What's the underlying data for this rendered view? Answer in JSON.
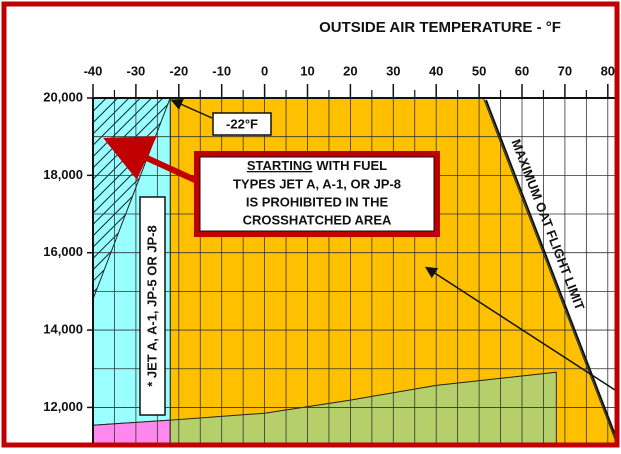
{
  "chart_data": {
    "type": "region",
    "title": "OUTSIDE AIR TEMPERATURE  -  °F",
    "xlim": [
      -40,
      82
    ],
    "ylim": [
      11080,
      20000
    ],
    "xticks": [
      -40,
      -30,
      -20,
      -10,
      0,
      10,
      20,
      30,
      40,
      50,
      60,
      70,
      80
    ],
    "yticks": [
      {
        "value": 12000,
        "label": "12,000"
      },
      {
        "value": 14000,
        "label": "14,000"
      },
      {
        "value": 16000,
        "label": "16,000"
      },
      {
        "value": 18000,
        "label": "18,000"
      },
      {
        "value": 20000,
        "label": "20,000"
      }
    ],
    "grid": true,
    "regions": [
      {
        "color": "#ffc000",
        "x": [
          -22,
          -22,
          51,
          82
        ],
        "y": [
          11080,
          20000,
          20000,
          11080
        ]
      },
      {
        "color": "#99ffff",
        "x": [
          -40,
          -40,
          -22,
          -22
        ],
        "y": [
          11540,
          20000,
          20000,
          11670
        ]
      },
      {
        "color": "#ff88ee",
        "x": [
          -40,
          -40,
          -22,
          -22
        ],
        "y": [
          11080,
          11540,
          11670,
          11080
        ]
      },
      {
        "color": "#b5cf6b",
        "x": [
          -22,
          -22,
          0,
          20,
          40,
          68,
          68
        ],
        "y": [
          11080,
          11670,
          11850,
          12190,
          12570,
          12910,
          11080
        ]
      },
      {
        "color": "#99ffff",
        "hatch": true,
        "x": [
          -40,
          -40,
          -22
        ],
        "y": [
          14800,
          20000,
          20000
        ]
      }
    ],
    "annotations": {
      "temp_mark": "-22°F",
      "fuel_note": "* JET A, A-1, JP-5 OR JP-8",
      "limit": "MAXIMUM OAT FLIGHT LIMIT",
      "callout_emphasis": "STARTING",
      "callout_lines": [
        "WITH FUEL",
        "TYPES JET A, A-1, OR JP-8",
        "IS PROHIBITED IN THE",
        "CROSSHATCHED AREA"
      ]
    }
  }
}
